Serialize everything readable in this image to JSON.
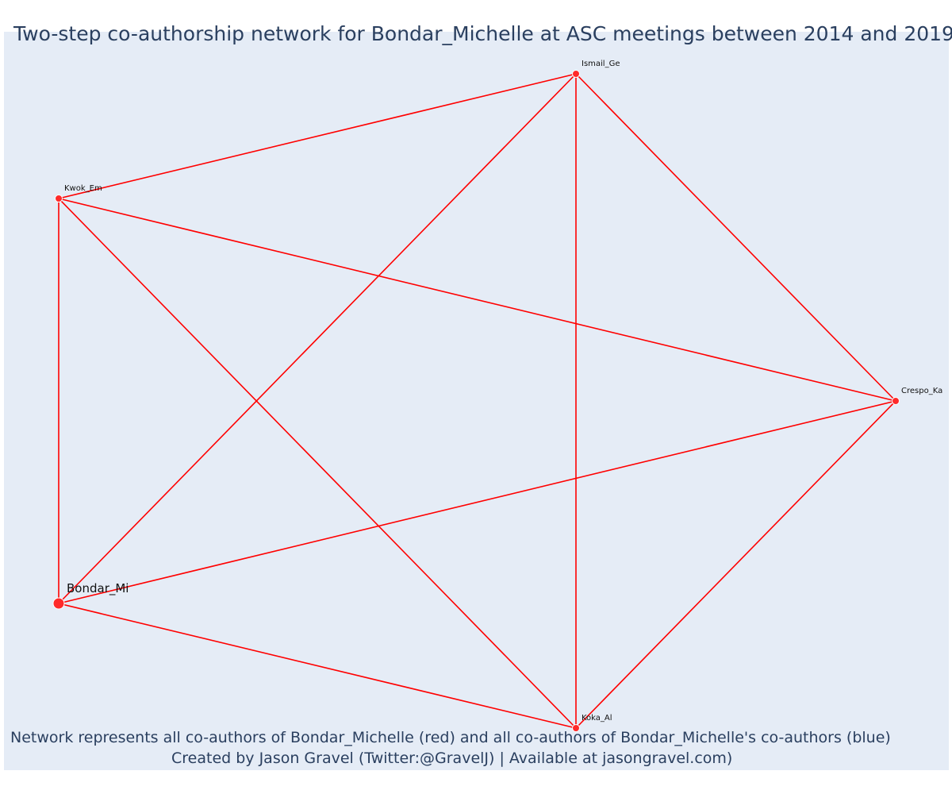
{
  "title": "Two-step co-authorship network for Bondar_Michelle at ASC meetings between 2014 and 2019",
  "caption": {
    "line1": "Network represents all co-authors of Bondar_Michelle (red) and all co-authors of Bondar_Michelle's co-authors (blue)",
    "line2": "Created by Jason Gravel (Twitter:@GravelJ) | Available at jasongravel.com)"
  },
  "colors": {
    "plot_bg": "#e5ecf6",
    "edge": "#ff0000",
    "node_red": "#ff2a2a",
    "node_outline": "#ffffff",
    "text": "#2a3f5f"
  },
  "chart_data": {
    "type": "network",
    "title": "Two-step co-authorship network for Bondar_Michelle at ASC meetings between 2014 and 2019",
    "nodes": [
      {
        "id": "Bondar_Mi",
        "label": "Bondar_Mi",
        "group": "focal"
      },
      {
        "id": "Kwok_Em",
        "label": "Kwok_Em",
        "group": "co-author"
      },
      {
        "id": "Ismail_Ge",
        "label": "Ismail_Ge",
        "group": "co-author"
      },
      {
        "id": "Crespo_Ka",
        "label": "Crespo_Ka",
        "group": "co-author"
      },
      {
        "id": "Koka_Al",
        "label": "Koka_Al",
        "group": "co-author"
      }
    ],
    "edges": [
      [
        "Bondar_Mi",
        "Kwok_Em"
      ],
      [
        "Bondar_Mi",
        "Ismail_Ge"
      ],
      [
        "Bondar_Mi",
        "Crespo_Ka"
      ],
      [
        "Bondar_Mi",
        "Koka_Al"
      ],
      [
        "Kwok_Em",
        "Ismail_Ge"
      ],
      [
        "Kwok_Em",
        "Crespo_Ka"
      ],
      [
        "Kwok_Em",
        "Koka_Al"
      ],
      [
        "Ismail_Ge",
        "Crespo_Ka"
      ],
      [
        "Ismail_Ge",
        "Koka_Al"
      ],
      [
        "Crespo_Ka",
        "Koka_Al"
      ]
    ]
  }
}
